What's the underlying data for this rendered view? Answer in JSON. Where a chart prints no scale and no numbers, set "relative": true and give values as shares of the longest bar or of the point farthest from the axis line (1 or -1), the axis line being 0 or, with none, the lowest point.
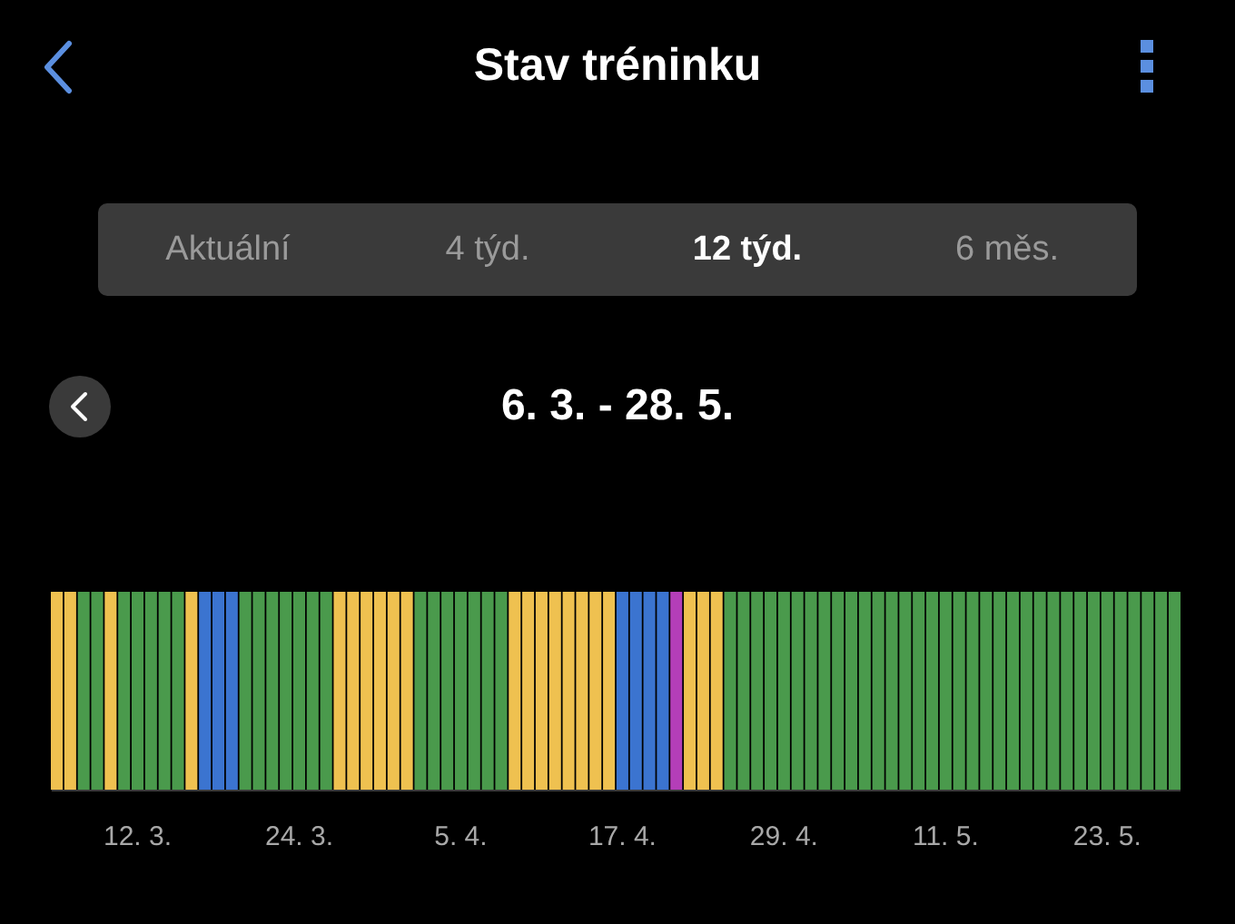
{
  "chart_data": {
    "type": "bar",
    "relative": true,
    "title": "Stav tréninku",
    "subtitle": "6. 3. - 28. 5.",
    "annotations": [
      "Aktuální",
      "4 týd.",
      "12 týd.",
      "6 měs."
    ],
    "categories": [
      null,
      null,
      null,
      null,
      null,
      null,
      "12. 3.",
      null,
      null,
      null,
      null,
      null,
      null,
      null,
      null,
      null,
      null,
      null,
      "24. 3.",
      null,
      null,
      null,
      null,
      null,
      null,
      null,
      null,
      null,
      null,
      null,
      "5. 4.",
      null,
      null,
      null,
      null,
      null,
      null,
      null,
      null,
      null,
      null,
      null,
      "17. 4.",
      null,
      null,
      null,
      null,
      null,
      null,
      null,
      null,
      null,
      null,
      null,
      "29. 4.",
      null,
      null,
      null,
      null,
      null,
      null,
      null,
      null,
      null,
      null,
      null,
      "11. 5.",
      null,
      null,
      null,
      null,
      null,
      null,
      null,
      null,
      null,
      null,
      null,
      "23. 5.",
      null,
      null,
      null,
      null,
      null
    ],
    "values": [
      1,
      1,
      1,
      1,
      1,
      1,
      1,
      1,
      1,
      1,
      1,
      1,
      1,
      1,
      1,
      1,
      1,
      1,
      1,
      1,
      1,
      1,
      1,
      1,
      1,
      1,
      1,
      1,
      1,
      1,
      1,
      1,
      1,
      1,
      1,
      1,
      1,
      1,
      1,
      1,
      1,
      1,
      1,
      1,
      1,
      1,
      1,
      1,
      1,
      1,
      1,
      1,
      1,
      1,
      1,
      1,
      1,
      1,
      1,
      1,
      1,
      1,
      1,
      1,
      1,
      1,
      1,
      1,
      1,
      1,
      1,
      1,
      1,
      1,
      1,
      1,
      1,
      1,
      1,
      1,
      1,
      1,
      1,
      1
    ],
    "colors": [
      "#efc150",
      "#efc150",
      "#4a9a4c",
      "#4a9a4c",
      "#efc150",
      "#4a9a4c",
      "#4a9a4c",
      "#4a9a4c",
      "#4a9a4c",
      "#4a9a4c",
      "#efc150",
      "#3b74d0",
      "#3b74d0",
      "#3b74d0",
      "#4a9a4c",
      "#4a9a4c",
      "#4a9a4c",
      "#4a9a4c",
      "#4a9a4c",
      "#4a9a4c",
      "#4a9a4c",
      "#efc150",
      "#efc150",
      "#efc150",
      "#efc150",
      "#efc150",
      "#efc150",
      "#4a9a4c",
      "#4a9a4c",
      "#4a9a4c",
      "#4a9a4c",
      "#4a9a4c",
      "#4a9a4c",
      "#4a9a4c",
      "#efc150",
      "#efc150",
      "#efc150",
      "#efc150",
      "#efc150",
      "#efc150",
      "#efc150",
      "#efc150",
      "#3b74d0",
      "#3b74d0",
      "#3b74d0",
      "#3b74d0",
      "#b43eb8",
      "#efc150",
      "#efc150",
      "#efc150",
      "#4a9a4c",
      "#4a9a4c",
      "#4a9a4c",
      "#4a9a4c",
      "#4a9a4c",
      "#4a9a4c",
      "#4a9a4c",
      "#4a9a4c",
      "#4a9a4c",
      "#4a9a4c",
      "#4a9a4c",
      "#4a9a4c",
      "#4a9a4c",
      "#4a9a4c",
      "#4a9a4c",
      "#4a9a4c",
      "#4a9a4c",
      "#4a9a4c",
      "#4a9a4c",
      "#4a9a4c",
      "#4a9a4c",
      "#4a9a4c",
      "#4a9a4c",
      "#4a9a4c",
      "#4a9a4c",
      "#4a9a4c",
      "#4a9a4c",
      "#4a9a4c",
      "#4a9a4c",
      "#4a9a4c",
      "#4a9a4c",
      "#4a9a4c",
      "#4a9a4c",
      "#4a9a4c"
    ]
  }
}
